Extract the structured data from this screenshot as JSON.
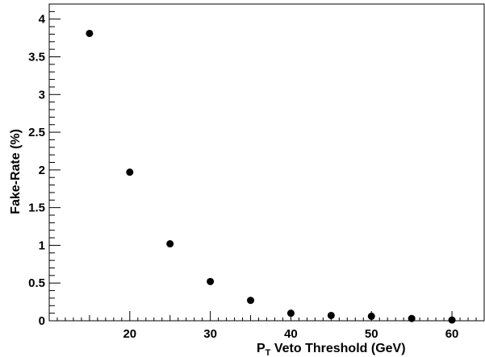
{
  "chart_data": {
    "type": "scatter",
    "xlabel_main": "P",
    "xlabel_sub": "T",
    "xlabel_rest": " Veto Threshold (GeV)",
    "ylabel": "Fake-Rate (%)",
    "xlim": [
      10,
      64
    ],
    "ylim": [
      0,
      4.2
    ],
    "x_ticks": [
      20,
      30,
      40,
      50,
      60
    ],
    "y_ticks": [
      0,
      0.5,
      1,
      1.5,
      2,
      2.5,
      3,
      3.5,
      4
    ],
    "x_tick_labels": [
      "20",
      "30",
      "40",
      "50",
      "60"
    ],
    "y_tick_labels": [
      "0",
      "0.5",
      "1",
      "1.5",
      "2",
      "2.5",
      "3",
      "3.5",
      "4"
    ],
    "x": [
      15,
      20,
      25,
      30,
      35,
      40,
      45,
      50,
      55,
      60
    ],
    "y": [
      3.81,
      1.97,
      1.02,
      0.52,
      0.27,
      0.1,
      0.07,
      0.06,
      0.03,
      0.01
    ],
    "marker_color": "#000000",
    "grid": false
  }
}
